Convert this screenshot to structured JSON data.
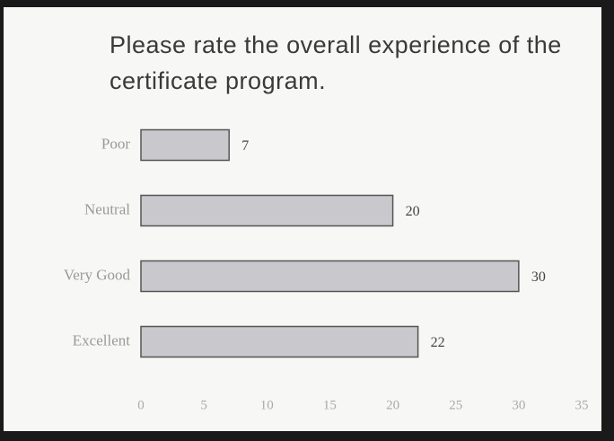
{
  "chart_data": {
    "type": "bar",
    "orientation": "horizontal",
    "title": "Please rate the overall experience of the certificate program.",
    "categories": [
      "Poor",
      "Neutral",
      "Very Good",
      "Excellent"
    ],
    "values": [
      7,
      20,
      30,
      22
    ],
    "color": "#c9c9cd",
    "xlim": [
      0,
      35
    ],
    "xticks": [
      0,
      5,
      10,
      15,
      20,
      25,
      30,
      35
    ]
  }
}
